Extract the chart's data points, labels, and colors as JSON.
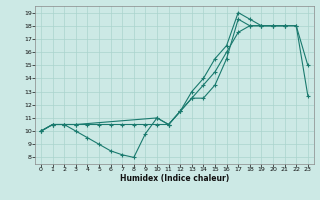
{
  "xlabel": "Humidex (Indice chaleur)",
  "xlim": [
    -0.5,
    23.5
  ],
  "ylim": [
    7.5,
    19.5
  ],
  "xticks": [
    0,
    1,
    2,
    3,
    4,
    5,
    6,
    7,
    8,
    9,
    10,
    11,
    12,
    13,
    14,
    15,
    16,
    17,
    18,
    19,
    20,
    21,
    22,
    23
  ],
  "yticks": [
    8,
    9,
    10,
    11,
    12,
    13,
    14,
    15,
    16,
    17,
    18,
    19
  ],
  "line_color": "#1a7a6e",
  "bg_color": "#cce9e5",
  "grid_color": "#aad4ce",
  "line1_x": [
    0,
    1,
    2,
    3,
    4,
    5,
    6,
    7,
    8,
    9,
    10,
    11,
    12,
    13,
    14,
    15,
    16,
    17,
    18,
    19,
    20,
    21
  ],
  "line1_y": [
    10,
    10.5,
    10.5,
    10.5,
    10.5,
    10.5,
    10.5,
    10.5,
    10.5,
    10.5,
    10.5,
    10.5,
    11.5,
    12.5,
    13.5,
    14.5,
    16.0,
    17.5,
    18.0,
    18.0,
    18.0,
    18.0
  ],
  "line2_x": [
    0,
    1,
    2,
    3,
    4,
    5,
    6,
    7,
    8,
    9,
    10,
    11,
    12,
    13,
    14,
    15,
    16,
    17,
    18,
    19,
    20,
    21,
    22,
    23
  ],
  "line2_y": [
    10,
    10.5,
    10.5,
    10,
    9.5,
    9.0,
    8.5,
    8.2,
    8.0,
    9.8,
    11.0,
    10.5,
    11.5,
    13.0,
    14.0,
    15.5,
    16.5,
    19.0,
    18.5,
    18.0,
    18.0,
    18.0,
    18.0,
    15.0
  ],
  "line3_x": [
    0,
    1,
    2,
    3,
    10,
    11,
    12,
    13,
    14,
    15,
    16,
    17,
    18,
    19,
    20,
    21,
    22,
    23
  ],
  "line3_y": [
    10,
    10.5,
    10.5,
    10.5,
    11.0,
    10.5,
    11.5,
    12.5,
    12.5,
    13.5,
    15.5,
    18.5,
    18.0,
    18.0,
    18.0,
    18.0,
    18.0,
    12.7
  ]
}
